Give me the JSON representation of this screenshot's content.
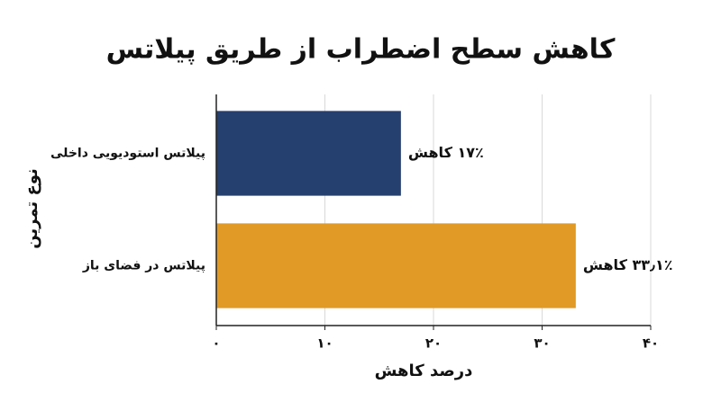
{
  "chart_data": {
    "type": "bar",
    "orientation": "horizontal",
    "title": "کاهش سطح اضطراب از طریق پیلاتس",
    "x_label": "درصد کاهش",
    "y_label": "نوع تمرین",
    "categories": [
      "پیلاتس استودیویی داخلی",
      "پیلاتس در فضای باز"
    ],
    "values": [
      17,
      33.1
    ],
    "value_labels": [
      "۱۷٪ کاهش",
      "۳۳٫۱٪ کاهش"
    ],
    "colors": [
      "#253f6e",
      "#e09a25"
    ],
    "xlim": [
      0,
      40
    ],
    "xticks": [
      {
        "value": 0,
        "label": "۰"
      },
      {
        "value": 10,
        "label": "۱۰"
      },
      {
        "value": 20,
        "label": "۲۰"
      },
      {
        "value": 30,
        "label": "۳۰"
      },
      {
        "value": 40,
        "label": "۴۰"
      }
    ],
    "grid": true
  }
}
